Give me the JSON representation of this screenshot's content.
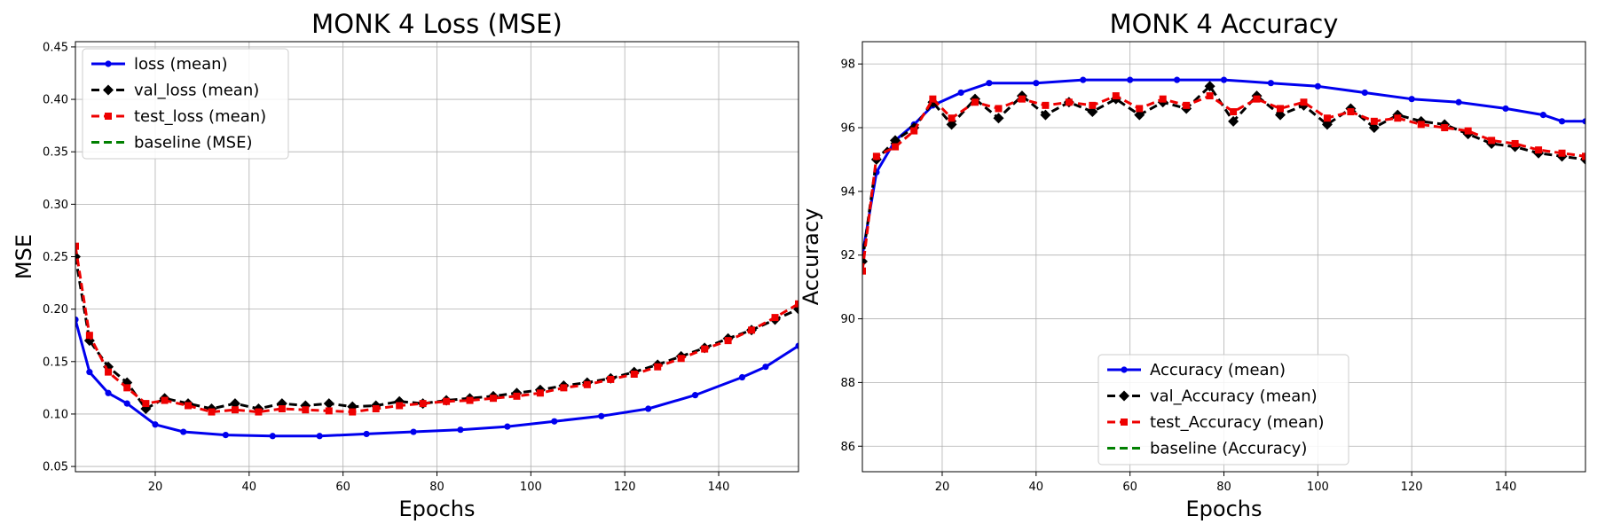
{
  "chart_data": [
    {
      "type": "line",
      "title": "MONK 4 Loss (MSE)",
      "xlabel": "Epochs",
      "ylabel": "MSE",
      "xlim": [
        3,
        157
      ],
      "ylim": [
        0.045,
        0.455
      ],
      "xticks": [
        20,
        40,
        60,
        80,
        100,
        120,
        140
      ],
      "yticks": [
        0.05,
        0.1,
        0.15,
        0.2,
        0.25,
        0.3,
        0.35,
        0.4,
        0.45
      ],
      "ytick_labels": [
        "0.05",
        "0.10",
        "0.15",
        "0.20",
        "0.25",
        "0.30",
        "0.35",
        "0.40",
        "0.45"
      ],
      "grid": true,
      "legend_position": "top-left",
      "legend": [
        "loss (mean)",
        "val_loss (mean)",
        "test_loss (mean)",
        "baseline (MSE)"
      ],
      "colors": {
        "loss": "#0000ee",
        "val": "#000000",
        "test": "#ee0000",
        "baseline": "#008000"
      },
      "series": [
        {
          "name": "loss (mean)",
          "role": "loss",
          "x": [
            3,
            6,
            10,
            14,
            20,
            26,
            35,
            45,
            55,
            65,
            75,
            85,
            95,
            105,
            115,
            125,
            135,
            145,
            150,
            157
          ],
          "y": [
            0.19,
            0.14,
            0.12,
            0.11,
            0.09,
            0.083,
            0.08,
            0.079,
            0.079,
            0.081,
            0.083,
            0.085,
            0.088,
            0.093,
            0.098,
            0.105,
            0.118,
            0.135,
            0.145,
            0.165
          ]
        },
        {
          "name": "val_loss (mean)",
          "role": "val",
          "x": [
            3,
            6,
            10,
            14,
            18,
            22,
            27,
            32,
            37,
            42,
            47,
            52,
            57,
            62,
            67,
            72,
            77,
            82,
            87,
            92,
            97,
            102,
            107,
            112,
            117,
            122,
            127,
            132,
            137,
            142,
            147,
            152,
            157
          ],
          "y": [
            0.25,
            0.17,
            0.145,
            0.13,
            0.105,
            0.115,
            0.11,
            0.105,
            0.11,
            0.105,
            0.11,
            0.108,
            0.11,
            0.107,
            0.108,
            0.112,
            0.11,
            0.113,
            0.115,
            0.117,
            0.12,
            0.123,
            0.127,
            0.13,
            0.134,
            0.14,
            0.147,
            0.155,
            0.163,
            0.172,
            0.18,
            0.19,
            0.2
          ]
        },
        {
          "name": "test_loss (mean)",
          "role": "test",
          "x": [
            3,
            6,
            10,
            14,
            18,
            22,
            27,
            32,
            37,
            42,
            47,
            52,
            57,
            62,
            67,
            72,
            77,
            82,
            87,
            92,
            97,
            102,
            107,
            112,
            117,
            122,
            127,
            132,
            137,
            142,
            147,
            152,
            157
          ],
          "y": [
            0.26,
            0.175,
            0.14,
            0.125,
            0.11,
            0.113,
            0.108,
            0.102,
            0.104,
            0.102,
            0.105,
            0.104,
            0.103,
            0.102,
            0.105,
            0.108,
            0.11,
            0.112,
            0.113,
            0.115,
            0.117,
            0.12,
            0.125,
            0.128,
            0.133,
            0.138,
            0.145,
            0.153,
            0.162,
            0.17,
            0.18,
            0.192,
            0.205
          ]
        }
      ]
    },
    {
      "type": "line",
      "title": "MONK 4 Accuracy",
      "xlabel": "Epochs",
      "ylabel": "Accuracy",
      "xlim": [
        3,
        157
      ],
      "ylim": [
        85.2,
        98.7
      ],
      "xticks": [
        20,
        40,
        60,
        80,
        100,
        120,
        140
      ],
      "yticks": [
        86,
        88,
        90,
        92,
        94,
        96,
        98
      ],
      "ytick_labels": [
        "86",
        "88",
        "90",
        "92",
        "94",
        "96",
        "98"
      ],
      "grid": true,
      "legend_position": "bottom-center",
      "legend": [
        "Accuracy (mean)",
        "val_Accuracy (mean)",
        "test_Accuracy (mean)",
        "baseline (Accuracy)"
      ],
      "colors": {
        "loss": "#0000ee",
        "val": "#000000",
        "test": "#ee0000",
        "baseline": "#008000"
      },
      "series": [
        {
          "name": "Accuracy (mean)",
          "role": "loss",
          "x": [
            3,
            6,
            10,
            14,
            18,
            24,
            30,
            40,
            50,
            60,
            70,
            80,
            90,
            100,
            110,
            120,
            130,
            140,
            148,
            152,
            157
          ],
          "y": [
            92.0,
            94.6,
            95.6,
            96.1,
            96.7,
            97.1,
            97.4,
            97.4,
            97.5,
            97.5,
            97.5,
            97.5,
            97.4,
            97.3,
            97.1,
            96.9,
            96.8,
            96.6,
            96.4,
            96.2,
            96.2
          ]
        },
        {
          "name": "val_Accuracy (mean)",
          "role": "val",
          "x": [
            3,
            6,
            10,
            14,
            18,
            22,
            27,
            32,
            37,
            42,
            47,
            52,
            57,
            62,
            67,
            72,
            77,
            82,
            87,
            92,
            97,
            102,
            107,
            112,
            117,
            122,
            127,
            132,
            137,
            142,
            147,
            152,
            157
          ],
          "y": [
            91.8,
            95.0,
            95.6,
            96.0,
            96.8,
            96.1,
            96.9,
            96.3,
            97.0,
            96.4,
            96.8,
            96.5,
            96.9,
            96.4,
            96.8,
            96.6,
            97.3,
            96.2,
            97.0,
            96.4,
            96.7,
            96.1,
            96.6,
            96.0,
            96.4,
            96.2,
            96.1,
            95.8,
            95.5,
            95.4,
            95.2,
            95.1,
            95.0
          ]
        },
        {
          "name": "test_Accuracy (mean)",
          "role": "test",
          "x": [
            3,
            6,
            10,
            14,
            18,
            22,
            27,
            32,
            37,
            42,
            47,
            52,
            57,
            62,
            67,
            72,
            77,
            82,
            87,
            92,
            97,
            102,
            107,
            112,
            117,
            122,
            127,
            132,
            137,
            142,
            147,
            152,
            157
          ],
          "y": [
            91.5,
            95.1,
            95.4,
            95.9,
            96.9,
            96.3,
            96.8,
            96.6,
            96.9,
            96.7,
            96.8,
            96.7,
            97.0,
            96.6,
            96.9,
            96.7,
            97.0,
            96.5,
            96.9,
            96.6,
            96.8,
            96.3,
            96.5,
            96.2,
            96.3,
            96.1,
            96.0,
            95.9,
            95.6,
            95.5,
            95.3,
            95.2,
            95.1
          ]
        }
      ]
    }
  ]
}
